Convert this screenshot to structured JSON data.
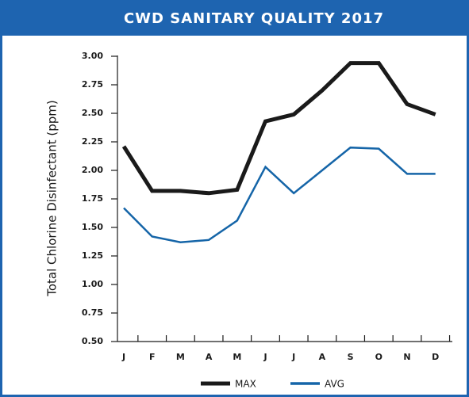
{
  "chart_data": {
    "type": "line",
    "title": "CWD SANITARY QUALITY 2017",
    "y_label": "Total Chlorine Disinfectant (ppm)",
    "categories": [
      "J",
      "F",
      "M",
      "A",
      "M",
      "J",
      "J",
      "A",
      "S",
      "O",
      "N",
      "D"
    ],
    "series": [
      {
        "name": "MAX",
        "color": "#1a1a1a",
        "values": [
          2.21,
          1.82,
          1.82,
          1.8,
          1.83,
          2.43,
          2.49,
          2.7,
          2.94,
          2.94,
          2.58,
          2.49
        ]
      },
      {
        "name": "AVG",
        "color": "#1565a8",
        "values": [
          1.67,
          1.42,
          1.37,
          1.39,
          1.56,
          2.03,
          1.8,
          2.0,
          2.2,
          2.19,
          1.97,
          1.97
        ]
      }
    ],
    "ylim": [
      0.5,
      3.0
    ],
    "yticks": [
      {
        "value": 0.5,
        "label": "0.50"
      },
      {
        "value": 0.75,
        "label": "0.75"
      },
      {
        "value": 1.0,
        "label": "1.00"
      },
      {
        "value": 1.25,
        "label": "1.25"
      },
      {
        "value": 1.5,
        "label": "1.50"
      },
      {
        "value": 1.75,
        "label": "1.75"
      },
      {
        "value": 2.0,
        "label": "2.00"
      },
      {
        "value": 2.25,
        "label": "2.25"
      },
      {
        "value": 2.5,
        "label": "2.50"
      },
      {
        "value": 2.75,
        "label": "2.75"
      },
      {
        "value": 3.0,
        "label": "3.00"
      }
    ],
    "legend": "bottom"
  }
}
